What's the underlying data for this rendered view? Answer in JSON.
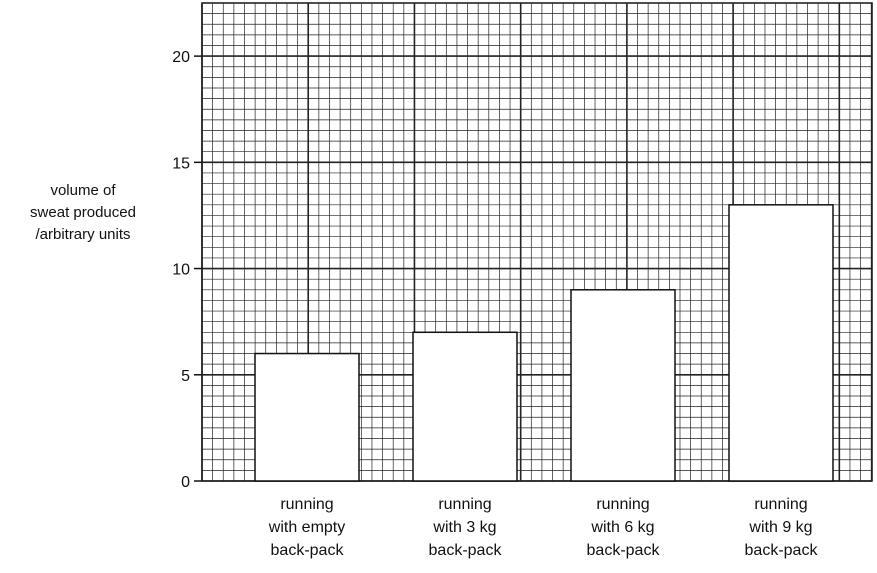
{
  "chart_data": {
    "type": "bar",
    "title": "",
    "xlabel": "",
    "ylabel_lines": [
      "volume of",
      "sweat produced",
      "/arbitrary units"
    ],
    "categories": [
      [
        "running",
        "with empty",
        "back-pack"
      ],
      [
        "running",
        "with 3 kg",
        "back-pack"
      ],
      [
        "running",
        "with 6 kg",
        "back-pack"
      ],
      [
        "running",
        "with 9 kg",
        "back-pack"
      ]
    ],
    "values": [
      6,
      7,
      9,
      13
    ],
    "ylim": [
      0,
      22.5
    ],
    "yticks": [
      0,
      5,
      10,
      15,
      20
    ],
    "grid": true,
    "colors": {
      "grid": "#222222",
      "bar_fill": "#ffffff",
      "bar_stroke": "#111111"
    }
  }
}
